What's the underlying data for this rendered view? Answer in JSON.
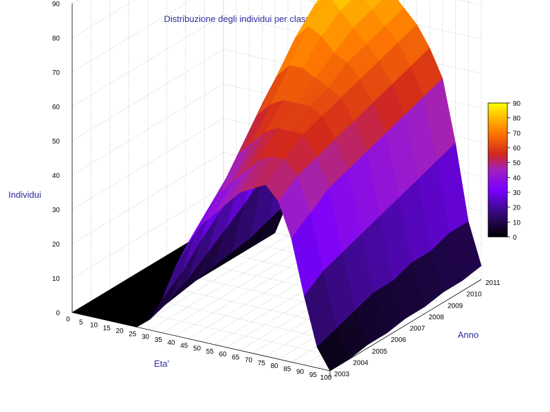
{
  "chart_data": {
    "type": "surface3d",
    "title": "Distribuzione degli individui per classi di eta' e per anno",
    "xlabel": "Eta'",
    "ylabel": "Anno",
    "zlabel": "Individui",
    "x_ticks": [
      0,
      5,
      10,
      15,
      20,
      25,
      30,
      35,
      40,
      45,
      50,
      55,
      60,
      65,
      70,
      75,
      80,
      85,
      90,
      95,
      100
    ],
    "y_ticks": [
      2003,
      2004,
      2005,
      2006,
      2007,
      2008,
      2009,
      2010,
      2011
    ],
    "z_ticks": [
      0,
      10,
      20,
      30,
      40,
      50,
      60,
      70,
      80,
      90
    ],
    "xlim": [
      0,
      100
    ],
    "ylim": [
      2003,
      2011
    ],
    "zlim": [
      0,
      90
    ],
    "colorbar": {
      "min": 0,
      "max": 90,
      "ticks": [
        0,
        10,
        20,
        30,
        40,
        50,
        60,
        70,
        80,
        90
      ],
      "palette": "black-purple-red-orange-yellow"
    },
    "grid": true,
    "ages": [
      0,
      5,
      10,
      15,
      20,
      25,
      30,
      35,
      40,
      45,
      50,
      55,
      60,
      65,
      70,
      75,
      80,
      85,
      90,
      95,
      100
    ],
    "years": [
      2003,
      2004,
      2005,
      2006,
      2007,
      2008,
      2009,
      2010,
      2011
    ],
    "values": [
      [
        0,
        0,
        0,
        0,
        0,
        0,
        0,
        0,
        0
      ],
      [
        0,
        0,
        0,
        0,
        0,
        0,
        0,
        0,
        0
      ],
      [
        0,
        0,
        0,
        0,
        0,
        0,
        0,
        0,
        0
      ],
      [
        0,
        0,
        0,
        0,
        0,
        0,
        0,
        0,
        0
      ],
      [
        0,
        0,
        0,
        0,
        0,
        0,
        0,
        0,
        0
      ],
      [
        0,
        1,
        2,
        3,
        4,
        5,
        6,
        8,
        10
      ],
      [
        3,
        5,
        8,
        12,
        16,
        20,
        25,
        28,
        30
      ],
      [
        10,
        14,
        20,
        25,
        30,
        35,
        40,
        44,
        46
      ],
      [
        20,
        26,
        32,
        38,
        44,
        50,
        55,
        60,
        62
      ],
      [
        28,
        34,
        40,
        48,
        56,
        62,
        68,
        72,
        75
      ],
      [
        34,
        40,
        48,
        56,
        64,
        72,
        78,
        84,
        86
      ],
      [
        38,
        44,
        52,
        60,
        68,
        76,
        82,
        86,
        88
      ],
      [
        42,
        48,
        56,
        62,
        68,
        74,
        78,
        80,
        82
      ],
      [
        46,
        52,
        58,
        62,
        66,
        70,
        74,
        76,
        78
      ],
      [
        48,
        54,
        58,
        62,
        64,
        68,
        70,
        72,
        74
      ],
      [
        50,
        54,
        58,
        60,
        62,
        64,
        66,
        68,
        70
      ],
      [
        46,
        50,
        52,
        54,
        56,
        58,
        60,
        62,
        64
      ],
      [
        36,
        40,
        44,
        46,
        48,
        50,
        52,
        54,
        56
      ],
      [
        20,
        24,
        26,
        28,
        30,
        32,
        34,
        36,
        38
      ],
      [
        6,
        8,
        10,
        12,
        12,
        14,
        14,
        16,
        16
      ],
      [
        0,
        0,
        1,
        1,
        2,
        2,
        3,
        3,
        4
      ]
    ]
  }
}
